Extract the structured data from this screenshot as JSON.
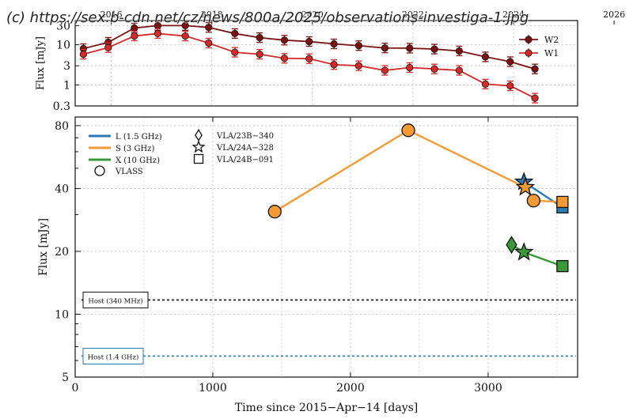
{
  "watermark": "(c) https://sex.b-cdn.net/cz/news/800a/2025/observations-investiga-1.jpg",
  "chart_data": [
    {
      "type": "line",
      "panel": "top",
      "ylabel": "Flux [mJy]",
      "y_scale": "log",
      "ylim": [
        0.3,
        40
      ],
      "xlim": [
        0,
        3650
      ],
      "y_ticks": [
        {
          "v": 0.3,
          "label": "0.3"
        },
        {
          "v": 1,
          "label": "1"
        },
        {
          "v": 3,
          "label": "3"
        },
        {
          "v": 10,
          "label": "10"
        },
        {
          "v": 30,
          "label": "30"
        }
      ],
      "top_axis_ticks": [
        {
          "x": 262,
          "label": "2016"
        },
        {
          "x": 993,
          "label": "2018"
        },
        {
          "x": 1723,
          "label": "2020"
        },
        {
          "x": 2454,
          "label": "2022"
        },
        {
          "x": 3185,
          "label": "2024"
        },
        {
          "x": 3915,
          "label": "2026"
        }
      ],
      "legend_position": "top-right",
      "series": [
        {
          "name": "W2",
          "color": "#7a1212",
          "marker": "circle-errorbar",
          "x": [
            60,
            240,
            430,
            600,
            800,
            970,
            1160,
            1340,
            1520,
            1700,
            1880,
            2060,
            2250,
            2430,
            2610,
            2790,
            2980,
            3160,
            3340
          ],
          "y": [
            8,
            11.5,
            26,
            30,
            30,
            27,
            19,
            15,
            13,
            12,
            10.5,
            9.5,
            8.3,
            8.2,
            7.8,
            7,
            5,
            3.8,
            2.5
          ]
        },
        {
          "name": "W1",
          "color": "#d42a2a",
          "marker": "circle-errorbar",
          "x": [
            60,
            240,
            430,
            600,
            800,
            970,
            1160,
            1340,
            1520,
            1700,
            1880,
            2060,
            2250,
            2430,
            2610,
            2790,
            2980,
            3160,
            3340
          ],
          "y": [
            5.8,
            8.5,
            16.5,
            19,
            16.5,
            11,
            6.5,
            5.8,
            4.6,
            4.5,
            3.2,
            3,
            2.3,
            2.7,
            2.5,
            2.3,
            1.05,
            0.95,
            0.47
          ]
        }
      ]
    },
    {
      "type": "line",
      "panel": "bottom",
      "xlabel": "Time since 2015−Apr−14 [days]",
      "ylabel": "Flux [mJy]",
      "y_scale": "log",
      "ylim": [
        5,
        88
      ],
      "xlim": [
        0,
        3650
      ],
      "x_ticks": [
        {
          "v": 0,
          "label": "0"
        },
        {
          "v": 1000,
          "label": "1000"
        },
        {
          "v": 2000,
          "label": "2000"
        },
        {
          "v": 3000,
          "label": "3000"
        }
      ],
      "y_ticks": [
        {
          "v": 5,
          "label": "5"
        },
        {
          "v": 10,
          "label": "10"
        },
        {
          "v": 20,
          "label": "20"
        },
        {
          "v": 40,
          "label": "40"
        },
        {
          "v": 80,
          "label": "80"
        }
      ],
      "y_ticks_minor": [
        6,
        7,
        8,
        9,
        30,
        50,
        60,
        70
      ],
      "legend_position": "top-left",
      "legend_bands": [
        {
          "name": "L (1.5 GHz)",
          "color": "#2b7bb9"
        },
        {
          "name": "S (3 GHz)",
          "color": "#f29a33"
        },
        {
          "name": "X (10 GHz)",
          "color": "#3a9a3a"
        }
      ],
      "legend_markers": [
        {
          "name": "VLASS",
          "marker": "circle"
        },
        {
          "name": "VLA/23B−340",
          "marker": "diamond"
        },
        {
          "name": "VLA/24A−328",
          "marker": "star"
        },
        {
          "name": "VLA/24B−091",
          "marker": "square"
        }
      ],
      "series": [
        {
          "band": "L",
          "color": "#2b7bb9",
          "points": [
            {
              "x": 3260,
              "y": 43,
              "marker": "star"
            },
            {
              "x": 3540,
              "y": 32.5,
              "marker": "square"
            }
          ]
        },
        {
          "band": "S",
          "color": "#f29a33",
          "points": [
            {
              "x": 1450,
              "y": 31,
              "marker": "circle"
            },
            {
              "x": 2420,
              "y": 76,
              "marker": "circle"
            },
            {
              "x": 3270,
              "y": 40.5,
              "marker": "star"
            },
            {
              "x": 3330,
              "y": 35,
              "marker": "circle"
            },
            {
              "x": 3540,
              "y": 34.5,
              "marker": "square"
            }
          ]
        },
        {
          "band": "X",
          "color": "#3a9a3a",
          "points": [
            {
              "x": 3170,
              "y": 21.5,
              "marker": "diamond"
            },
            {
              "x": 3260,
              "y": 19.8,
              "marker": "star"
            },
            {
              "x": 3540,
              "y": 17,
              "marker": "square"
            }
          ]
        }
      ],
      "reference_lines": [
        {
          "label": "Host (340 MHz)",
          "y": 11.7,
          "color": "#111111"
        },
        {
          "label": "Host (1.4 GHz)",
          "y": 6.3,
          "color": "#2b7bb9"
        }
      ]
    }
  ]
}
